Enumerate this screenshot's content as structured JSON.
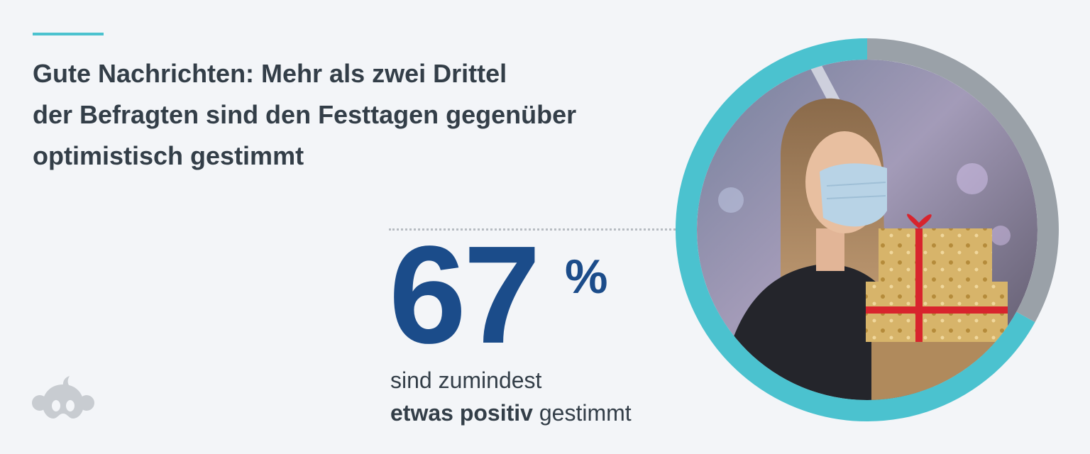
{
  "headline": {
    "line1": "Gute Nachrichten: Mehr als zwei Drittel",
    "line2": "der Befragten sind den Festtagen gegenüber",
    "line3": "optimistisch gestimmt"
  },
  "stat": {
    "number": "67",
    "unit": "%",
    "caption_line1": "sind zumindest",
    "caption_bold": "etwas positiv",
    "caption_rest": " gestimmt"
  },
  "chart_data": {
    "type": "pie",
    "title": "",
    "values": [
      67,
      33
    ],
    "value_unit": "%",
    "colors": {
      "highlight": "#4bc2cf",
      "remainder": "#9aa1a8",
      "number": "#1b4c8a",
      "accent": "#4bc2cf"
    },
    "center_image": "woman-with-face-mask-holding-gift-boxes"
  },
  "icons": {
    "logo": "surveymonkey-logo-icon"
  }
}
